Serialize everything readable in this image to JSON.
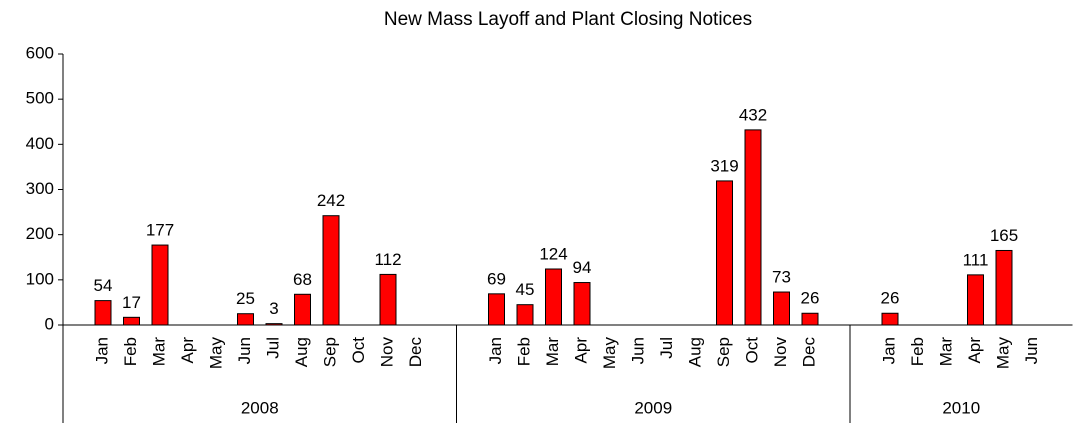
{
  "chart_data": {
    "type": "bar",
    "title": "New Mass Layoff and Plant Closing Notices",
    "color": "#ff0000",
    "groups": [
      {
        "name": "2008",
        "categories": [
          "Jan",
          "Feb",
          "Mar",
          "Apr",
          "May",
          "Jun",
          "Jul",
          "Aug",
          "Sep",
          "Oct",
          "Nov",
          "Dec"
        ],
        "values": [
          54,
          17,
          177,
          null,
          null,
          25,
          3,
          68,
          242,
          null,
          112,
          null
        ]
      },
      {
        "name": "2009",
        "categories": [
          "Jan",
          "Feb",
          "Mar",
          "Apr",
          "May",
          "Jun",
          "Jul",
          "Aug",
          "Sep",
          "Oct",
          "Nov",
          "Dec"
        ],
        "values": [
          69,
          45,
          124,
          94,
          null,
          null,
          null,
          null,
          319,
          432,
          73,
          26
        ]
      },
      {
        "name": "2010",
        "categories": [
          "Jan",
          "Feb",
          "Mar",
          "Apr",
          "May",
          "Jun"
        ],
        "values": [
          26,
          null,
          null,
          111,
          165,
          null
        ]
      }
    ],
    "ylim": [
      0,
      600
    ],
    "yticks": [
      0,
      100,
      200,
      300,
      400,
      500,
      600
    ]
  }
}
